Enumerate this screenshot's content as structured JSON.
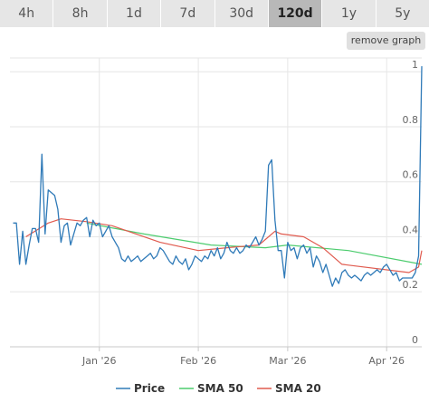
{
  "timeframe_tabs": [
    {
      "label": "4h",
      "active": false
    },
    {
      "label": "8h",
      "active": false
    },
    {
      "label": "1d",
      "active": false
    },
    {
      "label": "7d",
      "active": false
    },
    {
      "label": "30d",
      "active": false
    },
    {
      "label": "120d",
      "active": true
    },
    {
      "label": "1y",
      "active": false
    },
    {
      "label": "5y",
      "active": false
    }
  ],
  "remove_graph_label": "remove graph",
  "chart_data": {
    "type": "line",
    "x_range": [
      "2025-12-04",
      "2026-04-12"
    ],
    "ylim": [
      0,
      1.05
    ],
    "y_ticks": [
      {
        "value": 0,
        "label": "0"
      },
      {
        "value": 0.2,
        "label": "0.2"
      },
      {
        "value": 0.4,
        "label": "0.4"
      },
      {
        "value": 0.6,
        "label": "0.6"
      },
      {
        "value": 0.8,
        "label": "0.8"
      },
      {
        "value": 1,
        "label": "1"
      }
    ],
    "x_ticks": [
      {
        "value": "2026-01-01",
        "label": "Jan '26"
      },
      {
        "value": "2026-02-01",
        "label": "Feb '26"
      },
      {
        "value": "2026-03-01",
        "label": "Mar '26"
      },
      {
        "value": "2026-04-01",
        "label": "Apr '26"
      }
    ],
    "grid": true,
    "legend_position": "bottom",
    "series": [
      {
        "name": "Price",
        "color": "#2f7ab8",
        "points": [
          [
            "2025-12-05",
            0.45
          ],
          [
            "2025-12-06",
            0.45
          ],
          [
            "2025-12-07",
            0.3
          ],
          [
            "2025-12-08",
            0.42
          ],
          [
            "2025-12-09",
            0.3
          ],
          [
            "2025-12-10",
            0.37
          ],
          [
            "2025-12-11",
            0.43
          ],
          [
            "2025-12-12",
            0.43
          ],
          [
            "2025-12-13",
            0.38
          ],
          [
            "2025-12-14",
            0.7
          ],
          [
            "2025-12-15",
            0.41
          ],
          [
            "2025-12-16",
            0.57
          ],
          [
            "2025-12-17",
            0.56
          ],
          [
            "2025-12-18",
            0.55
          ],
          [
            "2025-12-19",
            0.5
          ],
          [
            "2025-12-20",
            0.38
          ],
          [
            "2025-12-21",
            0.44
          ],
          [
            "2025-12-22",
            0.45
          ],
          [
            "2025-12-23",
            0.37
          ],
          [
            "2025-12-24",
            0.41
          ],
          [
            "2025-12-25",
            0.45
          ],
          [
            "2025-12-26",
            0.44
          ],
          [
            "2025-12-27",
            0.46
          ],
          [
            "2025-12-28",
            0.47
          ],
          [
            "2025-12-29",
            0.4
          ],
          [
            "2025-12-30",
            0.46
          ],
          [
            "2025-12-31",
            0.44
          ],
          [
            "2026-01-01",
            0.45
          ],
          [
            "2026-01-02",
            0.4
          ],
          [
            "2026-01-03",
            0.42
          ],
          [
            "2026-01-04",
            0.44
          ],
          [
            "2026-01-05",
            0.4
          ],
          [
            "2026-01-06",
            0.38
          ],
          [
            "2026-01-07",
            0.36
          ],
          [
            "2026-01-08",
            0.32
          ],
          [
            "2026-01-09",
            0.31
          ],
          [
            "2026-01-10",
            0.33
          ],
          [
            "2026-01-11",
            0.31
          ],
          [
            "2026-01-12",
            0.32
          ],
          [
            "2026-01-13",
            0.33
          ],
          [
            "2026-01-14",
            0.31
          ],
          [
            "2026-01-15",
            0.32
          ],
          [
            "2026-01-16",
            0.33
          ],
          [
            "2026-01-17",
            0.34
          ],
          [
            "2026-01-18",
            0.32
          ],
          [
            "2026-01-19",
            0.33
          ],
          [
            "2026-01-20",
            0.36
          ],
          [
            "2026-01-21",
            0.35
          ],
          [
            "2026-01-22",
            0.33
          ],
          [
            "2026-01-23",
            0.31
          ],
          [
            "2026-01-24",
            0.3
          ],
          [
            "2026-01-25",
            0.33
          ],
          [
            "2026-01-26",
            0.31
          ],
          [
            "2026-01-27",
            0.3
          ],
          [
            "2026-01-28",
            0.32
          ],
          [
            "2026-01-29",
            0.28
          ],
          [
            "2026-01-30",
            0.3
          ],
          [
            "2026-01-31",
            0.33
          ],
          [
            "2026-02-01",
            0.32
          ],
          [
            "2026-02-02",
            0.31
          ],
          [
            "2026-02-03",
            0.33
          ],
          [
            "2026-02-04",
            0.32
          ],
          [
            "2026-02-05",
            0.35
          ],
          [
            "2026-02-06",
            0.33
          ],
          [
            "2026-02-07",
            0.36
          ],
          [
            "2026-02-08",
            0.32
          ],
          [
            "2026-02-09",
            0.34
          ],
          [
            "2026-02-10",
            0.38
          ],
          [
            "2026-02-11",
            0.35
          ],
          [
            "2026-02-12",
            0.34
          ],
          [
            "2026-02-13",
            0.36
          ],
          [
            "2026-02-14",
            0.34
          ],
          [
            "2026-02-15",
            0.35
          ],
          [
            "2026-02-16",
            0.37
          ],
          [
            "2026-02-17",
            0.36
          ],
          [
            "2026-02-18",
            0.38
          ],
          [
            "2026-02-19",
            0.4
          ],
          [
            "2026-02-20",
            0.37
          ],
          [
            "2026-02-21",
            0.39
          ],
          [
            "2026-02-22",
            0.42
          ],
          [
            "2026-02-23",
            0.66
          ],
          [
            "2026-02-24",
            0.68
          ],
          [
            "2026-02-25",
            0.46
          ],
          [
            "2026-02-26",
            0.35
          ],
          [
            "2026-02-27",
            0.35
          ],
          [
            "2026-02-28",
            0.25
          ],
          [
            "2026-03-01",
            0.38
          ],
          [
            "2026-03-02",
            0.35
          ],
          [
            "2026-03-03",
            0.36
          ],
          [
            "2026-03-04",
            0.32
          ],
          [
            "2026-03-05",
            0.36
          ],
          [
            "2026-03-06",
            0.37
          ],
          [
            "2026-03-07",
            0.34
          ],
          [
            "2026-03-08",
            0.36
          ],
          [
            "2026-03-09",
            0.29
          ],
          [
            "2026-03-10",
            0.33
          ],
          [
            "2026-03-11",
            0.31
          ],
          [
            "2026-03-12",
            0.27
          ],
          [
            "2026-03-13",
            0.3
          ],
          [
            "2026-03-14",
            0.26
          ],
          [
            "2026-03-15",
            0.22
          ],
          [
            "2026-03-16",
            0.25
          ],
          [
            "2026-03-17",
            0.23
          ],
          [
            "2026-03-18",
            0.27
          ],
          [
            "2026-03-19",
            0.28
          ],
          [
            "2026-03-20",
            0.26
          ],
          [
            "2026-03-21",
            0.25
          ],
          [
            "2026-03-22",
            0.26
          ],
          [
            "2026-03-23",
            0.25
          ],
          [
            "2026-03-24",
            0.24
          ],
          [
            "2026-03-25",
            0.26
          ],
          [
            "2026-03-26",
            0.27
          ],
          [
            "2026-03-27",
            0.26
          ],
          [
            "2026-03-28",
            0.27
          ],
          [
            "2026-03-29",
            0.28
          ],
          [
            "2026-03-30",
            0.27
          ],
          [
            "2026-03-31",
            0.29
          ],
          [
            "2026-04-01",
            0.3
          ],
          [
            "2026-04-02",
            0.28
          ],
          [
            "2026-04-03",
            0.26
          ],
          [
            "2026-04-04",
            0.27
          ],
          [
            "2026-04-05",
            0.24
          ],
          [
            "2026-04-06",
            0.25
          ],
          [
            "2026-04-07",
            0.25
          ],
          [
            "2026-04-08",
            0.25
          ],
          [
            "2026-04-09",
            0.25
          ],
          [
            "2026-04-10",
            0.27
          ],
          [
            "2026-04-11",
            0.33
          ],
          [
            "2026-04-12",
            1.02
          ]
        ]
      },
      {
        "name": "SMA 50",
        "color": "#4ccc6e",
        "points": [
          [
            "2025-12-28",
            0.45
          ],
          [
            "2026-01-15",
            0.41
          ],
          [
            "2026-02-05",
            0.37
          ],
          [
            "2026-02-22",
            0.36
          ],
          [
            "2026-03-01",
            0.37
          ],
          [
            "2026-03-20",
            0.35
          ],
          [
            "2026-04-12",
            0.3
          ]
        ]
      },
      {
        "name": "SMA 20",
        "color": "#e05a4e",
        "points": [
          [
            "2025-12-09",
            0.4
          ],
          [
            "2025-12-16",
            0.45
          ],
          [
            "2025-12-20",
            0.465
          ],
          [
            "2025-12-28",
            0.455
          ],
          [
            "2026-01-05",
            0.44
          ],
          [
            "2026-01-20",
            0.38
          ],
          [
            "2026-02-01",
            0.35
          ],
          [
            "2026-02-10",
            0.36
          ],
          [
            "2026-02-20",
            0.37
          ],
          [
            "2026-02-23",
            0.4
          ],
          [
            "2026-02-25",
            0.42
          ],
          [
            "2026-02-27",
            0.41
          ],
          [
            "2026-03-06",
            0.4
          ],
          [
            "2026-03-12",
            0.36
          ],
          [
            "2026-03-18",
            0.3
          ],
          [
            "2026-04-08",
            0.27
          ],
          [
            "2026-04-11",
            0.29
          ],
          [
            "2026-04-12",
            0.35
          ]
        ]
      }
    ]
  }
}
